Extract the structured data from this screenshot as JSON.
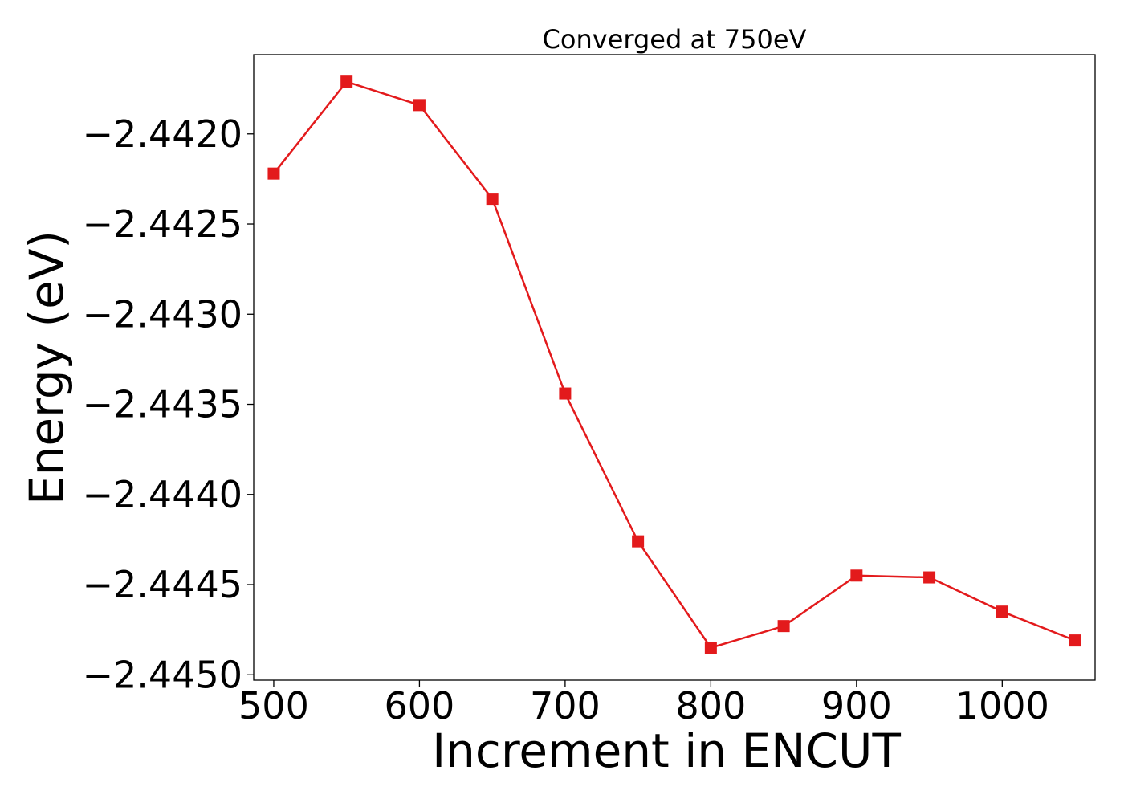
{
  "chart_data": {
    "type": "line",
    "title": "Converged at 750eV",
    "xlabel": "Increment in ENCUT",
    "ylabel": "Energy (eV)",
    "x": [
      500,
      550,
      600,
      650,
      700,
      750,
      800,
      850,
      900,
      950,
      1000,
      1050
    ],
    "series": [
      {
        "values": [
          -2.44222,
          -2.44171,
          -2.44184,
          -2.44236,
          -2.44344,
          -2.44426,
          -2.44485,
          -2.44473,
          -2.44445,
          -2.44446,
          -2.44465,
          -2.44481
        ],
        "color": "#e31a1c",
        "marker": "square"
      }
    ],
    "xticks": [
      500,
      600,
      700,
      800,
      900,
      1000
    ],
    "xtick_labels": [
      "500",
      "600",
      "700",
      "800",
      "900",
      "1000"
    ],
    "yticks": [
      -2.442,
      -2.4425,
      -2.443,
      -2.4435,
      -2.444,
      -2.4445,
      -2.445
    ],
    "ytick_labels": [
      "−2.4420",
      "−2.4425",
      "−2.4430",
      "−2.4435",
      "−2.4440",
      "−2.4445",
      "−2.4450"
    ],
    "xlim": [
      486.25,
      1063.75
    ],
    "ylim": [
      -2.44503,
      -2.44156
    ],
    "grid": false,
    "legend": "none"
  }
}
